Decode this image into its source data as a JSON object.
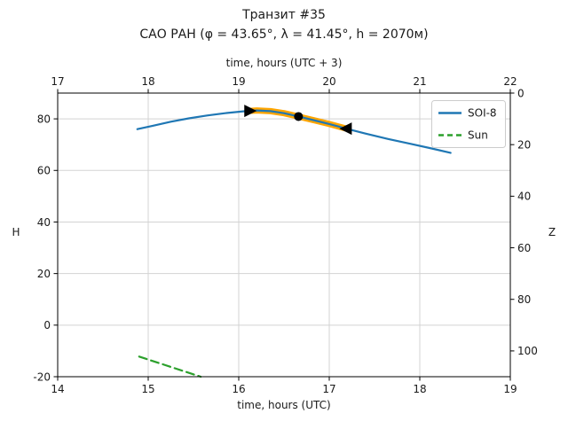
{
  "chart_data": {
    "type": "line",
    "title": "Транзит #35",
    "subtitle": "САО РАН (φ = 43.65°, λ = 41.45°, h = 2070м)",
    "x_range": [
      14,
      19
    ],
    "y_range": [
      -20,
      90
    ],
    "grid": true,
    "x_axis_bottom": {
      "label": "time, hours (UTC)",
      "ticks": [
        14,
        15,
        16,
        17,
        18,
        19
      ]
    },
    "x_axis_top": {
      "label": "time, hours (UTC + 3)",
      "ticks": [
        17,
        18,
        19,
        20,
        21,
        22
      ]
    },
    "y_axis_left": {
      "label": "H",
      "ticks": [
        -20,
        0,
        20,
        40,
        60,
        80
      ]
    },
    "y_axis_right": {
      "label": "Z",
      "ticks": [
        0,
        20,
        40,
        60,
        80,
        100
      ],
      "relation_H_plus_Z": 90
    },
    "legend": {
      "position": "upper right",
      "entries": [
        {
          "label": "SOI-8",
          "color": "#1f77b4",
          "style": "solid"
        },
        {
          "label": "Sun",
          "color": "#2ca02c",
          "style": "dashed"
        }
      ]
    },
    "series": [
      {
        "name": "SOI-8",
        "color": "#1f77b4",
        "style": "solid",
        "width": 2.2,
        "points": [
          [
            14.88,
            76.0
          ],
          [
            15.05,
            77.3
          ],
          [
            15.25,
            78.9
          ],
          [
            15.45,
            80.2
          ],
          [
            15.65,
            81.3
          ],
          [
            15.85,
            82.2
          ],
          [
            16.05,
            82.9
          ],
          [
            16.2,
            83.25
          ],
          [
            16.35,
            83.0
          ],
          [
            16.5,
            82.2
          ],
          [
            16.66,
            80.9
          ],
          [
            16.85,
            79.3
          ],
          [
            17.0,
            78.0
          ],
          [
            17.19,
            76.2
          ],
          [
            17.4,
            74.3
          ],
          [
            17.65,
            72.2
          ],
          [
            17.9,
            70.3
          ],
          [
            18.12,
            68.6
          ],
          [
            18.34,
            66.8
          ]
        ]
      },
      {
        "name": "Sun",
        "color": "#2ca02c",
        "style": "dashed",
        "width": 2.2,
        "points": [
          [
            14.9,
            -12.2
          ],
          [
            15.58,
            -20.0
          ]
        ]
      }
    ],
    "transit_highlight": {
      "color": "#ffa500",
      "width": 7,
      "points": [
        [
          16.12,
          83.1
        ],
        [
          16.2,
          83.25
        ],
        [
          16.35,
          83.0
        ],
        [
          16.5,
          82.2
        ],
        [
          16.66,
          80.9
        ],
        [
          16.85,
          79.3
        ],
        [
          17.0,
          78.0
        ],
        [
          17.19,
          76.2
        ]
      ]
    },
    "markers": [
      {
        "shape": "triangle-right",
        "color": "#000000",
        "at": [
          16.12,
          83.1
        ]
      },
      {
        "shape": "circle",
        "color": "#000000",
        "at": [
          16.66,
          80.9
        ]
      },
      {
        "shape": "triangle-left",
        "color": "#000000",
        "at": [
          17.19,
          76.2
        ]
      }
    ]
  }
}
